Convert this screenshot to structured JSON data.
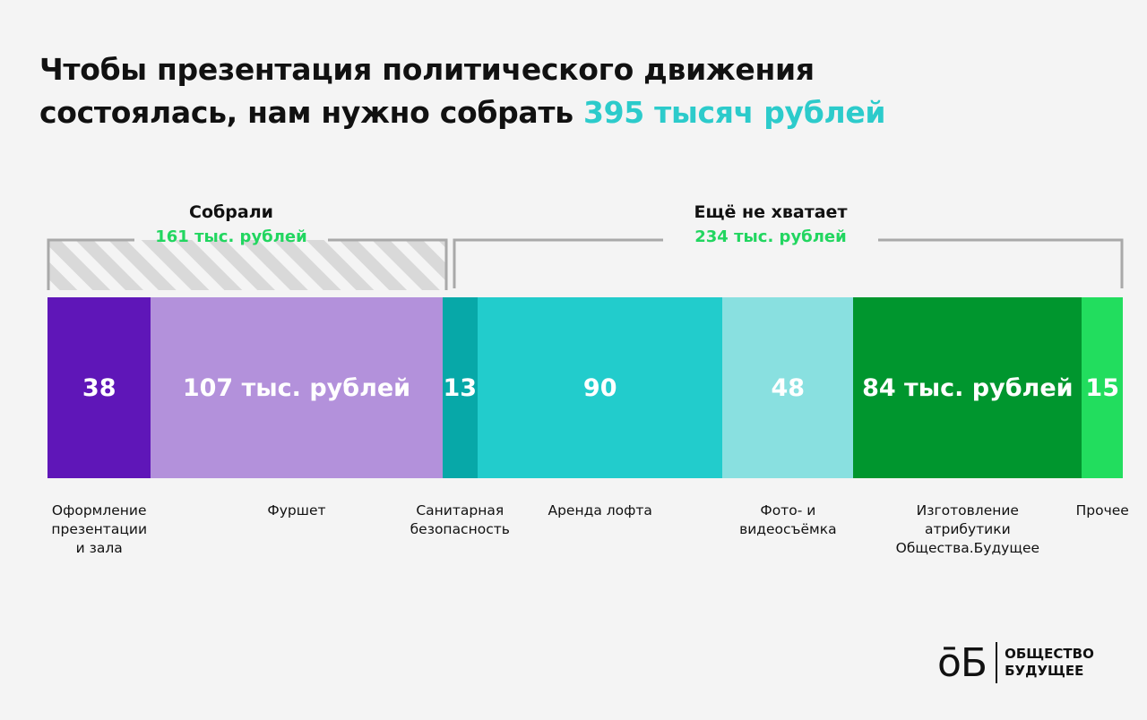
{
  "title": {
    "line1": "Чтобы презентация политического движения",
    "line2_prefix": "состоялась, нам нужно собрать ",
    "line2_accent": "395 тысяч рублей"
  },
  "brackets": {
    "collected": {
      "label": "Собрали",
      "amount": "161 тыс. рублей"
    },
    "missing": {
      "label": "Ещё не хватает",
      "amount": "234 тыс. рублей"
    }
  },
  "colors": {
    "accent_title": "#2ccbcb",
    "accent_amount": "#22d660"
  },
  "chart_data": {
    "type": "bar",
    "orientation": "stacked-horizontal",
    "unit": "тыс. рублей",
    "total": 395,
    "collected": 161,
    "missing": 234,
    "segments": [
      {
        "category": "Оформление\nпрезентации\nи зала",
        "value": 38,
        "label": "38",
        "color": "#5f16b8"
      },
      {
        "category": "Фуршет",
        "value": 107,
        "label": "107 тыс. рублей",
        "color": "#b391db"
      },
      {
        "category": "Санитарная\nбезопасность",
        "value": 13,
        "label": "13",
        "color": "#07a8a8"
      },
      {
        "category": "Аренда лофта",
        "value": 90,
        "label": "90",
        "color": "#22cccc"
      },
      {
        "category": "Фото- и\nвидеосъёмка",
        "value": 48,
        "label": "48",
        "color": "#89e0e0"
      },
      {
        "category": "Изготовление\nатрибутики\nОбщества.Будущее",
        "value": 84,
        "label": "84 тыс. рублей",
        "color": "#00962e"
      },
      {
        "category": "Прочее",
        "value": 15,
        "label": "15",
        "color": "#22dd5e"
      }
    ]
  },
  "logo": {
    "mark": "ōБ",
    "name": "ОБЩЕСТВО\nБУДУЩЕЕ"
  }
}
